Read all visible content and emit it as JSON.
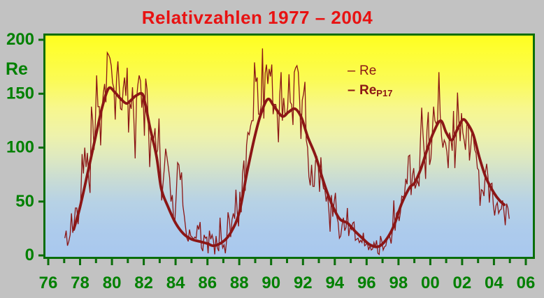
{
  "title": "Relativzahlen 1977 – 2004",
  "colors": {
    "page_background": "#c2c2c2",
    "title_red": "#e81212",
    "axis_text_green": "#008000",
    "axis_line_green": "#0a6e0a",
    "series_maroon": "#8b1616",
    "plot_top_yellow": "#ffff20",
    "plot_bottom_blue": "#a9c8ee"
  },
  "y_axis": {
    "label": "Re",
    "tick_values": [
      0,
      50,
      100,
      150,
      200
    ],
    "tick_labels": [
      "0",
      "50",
      "100",
      "150",
      "200"
    ]
  },
  "x_axis": {
    "tick_labels": [
      "76",
      "78",
      "80",
      "82",
      "84",
      "86",
      "88",
      "90",
      "92",
      "94",
      "96",
      "98",
      "00",
      "02",
      "04",
      "06"
    ]
  },
  "legend": {
    "dash": "–",
    "items": [
      {
        "label": "Re",
        "sub": "",
        "bold": false
      },
      {
        "label": "Re",
        "sub": "P17",
        "bold": true
      }
    ]
  },
  "chart_data": {
    "type": "line",
    "title": "Relativzahlen 1977 – 2004",
    "ylabel": "Re",
    "x_range": [
      1976,
      2006
    ],
    "y_range": [
      0,
      200
    ],
    "x_tick_step_years": 1,
    "x_label_step_years": 2,
    "grid": false,
    "legend_position": "inside-top-right",
    "series": [
      {
        "name": "Re",
        "kind": "monthly",
        "color": "#8b1616",
        "line_width": 1.3,
        "start_year": 1977,
        "end_year": 2004,
        "monthly_values": {
          "1977": [
            16,
            23,
            9,
            13,
            19,
            39,
            21,
            30,
            44,
            44,
            29,
            43
          ],
          "1978": [
            52,
            94,
            76,
            100,
            82,
            95,
            70,
            58,
            138,
            125,
            98,
            122
          ],
          "1979": [
            167,
            138,
            138,
            102,
            134,
            150,
            159,
            142,
            188,
            186,
            183,
            176
          ],
          "1980": [
            160,
            155,
            126,
            164,
            180,
            157,
            136,
            135,
            155,
            165,
            148,
            174
          ],
          "1981": [
            114,
            141,
            136,
            156,
            127,
            90,
            144,
            158,
            167,
            162,
            137,
            150
          ],
          "1982": [
            111,
            164,
            154,
            122,
            82,
            110,
            106,
            108,
            118,
            94,
            98,
            127
          ],
          "1983": [
            84,
            51,
            66,
            81,
            99,
            91,
            82,
            72,
            50,
            56,
            33,
            33
          ],
          "1984": [
            57,
            86,
            84,
            70,
            77,
            46,
            37,
            26,
            16,
            13,
            24,
            18
          ],
          "1985": [
            17,
            15,
            17,
            16,
            28,
            24,
            31,
            7,
            4,
            19,
            16,
            17
          ],
          "1986": [
            2,
            23,
            15,
            19,
            14,
            1,
            18,
            7,
            4,
            35,
            15,
            7
          ],
          "1987": [
            10,
            2,
            15,
            40,
            33,
            17,
            33,
            39,
            34,
            61,
            40,
            27
          ],
          "1988": [
            59,
            40,
            76,
            88,
            60,
            102,
            114,
            112,
            120,
            125,
            125,
            179
          ],
          "1989": [
            161,
            165,
            131,
            131,
            139,
            192,
            127,
            169,
            177,
            159,
            173,
            166
          ],
          "1990": [
            177,
            131,
            140,
            140,
            132,
            105,
            149,
            170,
            125,
            146,
            131,
            130
          ],
          "1991": [
            137,
            168,
            142,
            140,
            121,
            170,
            174,
            176,
            170,
            144,
            108,
            144
          ],
          "1992": [
            150,
            161,
            107,
            100,
            73,
            65,
            84,
            64,
            64,
            88,
            92,
            83
          ],
          "1993": [
            59,
            91,
            70,
            62,
            61,
            50,
            57,
            42,
            22,
            56,
            36,
            49
          ],
          "1994": [
            58,
            36,
            31,
            16,
            18,
            28,
            35,
            23,
            26,
            44,
            18,
            26
          ],
          "1995": [
            24,
            30,
            31,
            14,
            15,
            16,
            12,
            14,
            12,
            21,
            9,
            10
          ],
          "1996": [
            12,
            5,
            9,
            5,
            6,
            12,
            8,
            14,
            2,
            1,
            18,
            13
          ],
          "1997": [
            5,
            8,
            9,
            16,
            19,
            17,
            11,
            24,
            51,
            23,
            39,
            41
          ],
          "1998": [
            32,
            40,
            55,
            54,
            56,
            71,
            66,
            92,
            93,
            56,
            74,
            81
          ],
          "1999": [
            62,
            66,
            69,
            64,
            106,
            137,
            113,
            94,
            71,
            116,
            133,
            84
          ],
          "2000": [
            90,
            113,
            138,
            125,
            122,
            125,
            170,
            130,
            110,
            100,
            107,
            104
          ],
          "2001": [
            96,
            81,
            114,
            108,
            97,
            134,
            81,
            106,
            151,
            125,
            106,
            132
          ],
          "2002": [
            114,
            107,
            98,
            121,
            121,
            88,
            100,
            116,
            109,
            98,
            95,
            81
          ],
          "2003": [
            79,
            46,
            61,
            60,
            55,
            77,
            85,
            73,
            49,
            66,
            67,
            47
          ],
          "2004": [
            37,
            46,
            49,
            39,
            42,
            43,
            51,
            41,
            28,
            48,
            44,
            34
          ]
        }
      },
      {
        "name": "ReP17",
        "kind": "smoothed",
        "color": "#8b1616",
        "line_width": 3.8,
        "points": [
          [
            1977.6,
            24
          ],
          [
            1978.0,
            45
          ],
          [
            1978.5,
            78
          ],
          [
            1979.0,
            112
          ],
          [
            1979.4,
            138
          ],
          [
            1979.8,
            155
          ],
          [
            1980.2,
            151
          ],
          [
            1980.5,
            146
          ],
          [
            1980.9,
            141
          ],
          [
            1981.2,
            144
          ],
          [
            1981.5,
            148
          ],
          [
            1981.9,
            150
          ],
          [
            1982.1,
            140
          ],
          [
            1982.4,
            118
          ],
          [
            1982.8,
            92
          ],
          [
            1983.1,
            62
          ],
          [
            1983.5,
            46
          ],
          [
            1984.0,
            30
          ],
          [
            1984.5,
            20
          ],
          [
            1985.0,
            15
          ],
          [
            1985.5,
            13
          ],
          [
            1986.0,
            11
          ],
          [
            1986.4,
            9
          ],
          [
            1987.0,
            13
          ],
          [
            1987.5,
            22
          ],
          [
            1988.0,
            40
          ],
          [
            1988.5,
            78
          ],
          [
            1989.0,
            112
          ],
          [
            1989.4,
            133
          ],
          [
            1989.8,
            145
          ],
          [
            1990.2,
            138
          ],
          [
            1990.7,
            129
          ],
          [
            1991.1,
            133
          ],
          [
            1991.5,
            136
          ],
          [
            1991.9,
            128
          ],
          [
            1992.3,
            110
          ],
          [
            1992.8,
            92
          ],
          [
            1993.3,
            68
          ],
          [
            1993.8,
            48
          ],
          [
            1994.3,
            34
          ],
          [
            1994.8,
            30
          ],
          [
            1995.3,
            22
          ],
          [
            1995.8,
            15
          ],
          [
            1996.2,
            10
          ],
          [
            1996.7,
            8
          ],
          [
            1997.2,
            14
          ],
          [
            1997.7,
            27
          ],
          [
            1998.2,
            48
          ],
          [
            1998.7,
            63
          ],
          [
            1999.0,
            67
          ],
          [
            1999.4,
            80
          ],
          [
            1999.8,
            98
          ],
          [
            2000.2,
            114
          ],
          [
            2000.65,
            125
          ],
          [
            2001.0,
            114
          ],
          [
            2001.35,
            107
          ],
          [
            2001.7,
            117
          ],
          [
            2002.05,
            126
          ],
          [
            2002.35,
            122
          ],
          [
            2002.7,
            112
          ],
          [
            2003.1,
            90
          ],
          [
            2003.5,
            72
          ],
          [
            2004.0,
            58
          ],
          [
            2004.35,
            51
          ],
          [
            2004.65,
            47
          ]
        ]
      }
    ]
  }
}
